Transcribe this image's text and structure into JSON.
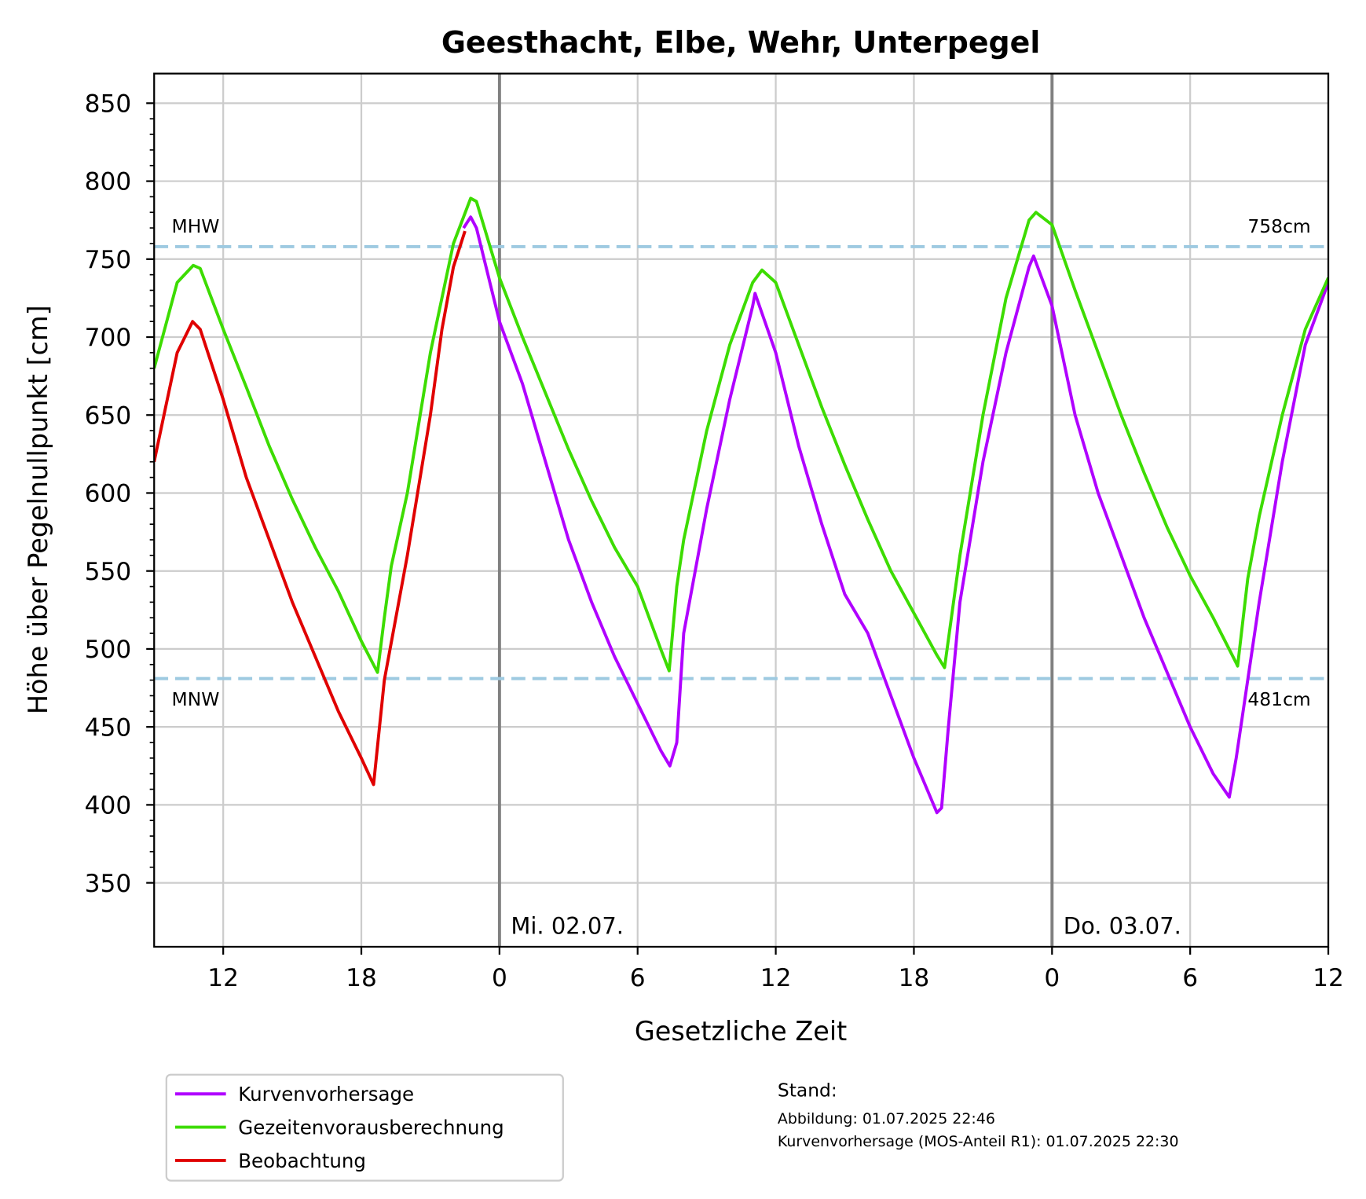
{
  "chart_data": {
    "type": "line",
    "title": "Geesthacht, Elbe, Wehr, Unterpegel",
    "xlabel": "Gesetzliche Zeit",
    "ylabel": "Höhe über Pegelnullpunkt [cm]",
    "xlim": [
      9,
      60
    ],
    "ylim": [
      309,
      869
    ],
    "xticks": [
      12,
      18,
      {
        "value": 24,
        "label": "0"
      },
      {
        "value": 30,
        "label": "6"
      },
      {
        "value": 36,
        "label": "12"
      },
      {
        "value": 42,
        "label": "18"
      },
      {
        "value": 48,
        "label": "0"
      },
      {
        "value": 54,
        "label": "6"
      },
      {
        "value": 60,
        "label": "12"
      }
    ],
    "yticks": [
      350,
      400,
      450,
      500,
      550,
      600,
      650,
      700,
      750,
      800,
      850
    ],
    "grid": true,
    "legend": "bottom left",
    "day_lines": [
      {
        "value": 24,
        "label": "Mi. 02.07."
      },
      {
        "value": 48,
        "label": "Do. 03.07."
      }
    ],
    "reference_lines": [
      {
        "name": "MHW",
        "value": 758,
        "label": "758cm"
      },
      {
        "name": "MNW",
        "value": 481,
        "label": "481cm"
      }
    ],
    "reference_color": "#9ecae1",
    "stand": {
      "heading": "Stand:",
      "lines": [
        "Abbildung: 01.07.2025 22:46",
        "Kurvenvorhersage (MOS-Anteil R1): 01.07.2025 22:30"
      ]
    },
    "series": [
      {
        "name": "Kurvenvorhersage",
        "color": "#b000ff",
        "x": [
          22.44,
          22.75,
          23,
          24,
          25,
          26,
          27,
          28,
          29,
          30,
          31,
          31.4,
          31.7,
          32,
          33,
          34,
          35,
          35.1,
          36,
          37,
          38,
          39,
          40,
          41,
          42,
          43,
          43.2,
          43.5,
          44,
          45,
          46,
          47,
          47.2,
          48,
          49,
          50,
          51,
          52,
          53,
          54,
          55,
          55.7,
          56,
          57,
          58,
          59,
          60
        ],
        "values": [
          770,
          777,
          770,
          710,
          670,
          620,
          570,
          530,
          495,
          465,
          435,
          425,
          440,
          510,
          590,
          660,
          720,
          728,
          690,
          630,
          580,
          535,
          510,
          470,
          430,
          395,
          398,
          450,
          530,
          620,
          690,
          745,
          752,
          720,
          650,
          600,
          560,
          520,
          485,
          450,
          420,
          405,
          430,
          530,
          620,
          695,
          735
        ]
      },
      {
        "name": "Gezeitenvorausberechnung",
        "color": "#3ddc00",
        "x": [
          9,
          10,
          10.7,
          11,
          12,
          13,
          14,
          15,
          16,
          17,
          18,
          18.7,
          19,
          19.3,
          20,
          21,
          22,
          22.75,
          23,
          24,
          25,
          26,
          27,
          28,
          29,
          30,
          31,
          31.37,
          31.7,
          32,
          33,
          34,
          35,
          35.4,
          36,
          37,
          38,
          39,
          40,
          41,
          42,
          43,
          43.33,
          44,
          45,
          46,
          47,
          47.3,
          48,
          49,
          50,
          51,
          52,
          53,
          54,
          55,
          56,
          56.06,
          56.5,
          57,
          58,
          59,
          60
        ],
        "values": [
          680,
          735,
          746,
          744,
          705,
          668,
          630,
          596,
          565,
          537,
          505,
          485,
          520,
          553,
          600,
          690,
          760,
          789,
          787,
          738,
          700,
          664,
          628,
          595,
          565,
          540,
          500,
          486,
          540,
          570,
          640,
          695,
          735,
          743,
          735,
          695,
          655,
          618,
          583,
          550,
          523,
          496,
          488,
          560,
          650,
          725,
          775,
          780,
          772,
          730,
          690,
          650,
          613,
          578,
          547,
          520,
          491,
          489,
          545,
          585,
          650,
          705,
          738
        ]
      },
      {
        "name": "Beobachtung",
        "color": "#e00000",
        "x": [
          9,
          9.5,
          10,
          10.67,
          11,
          12,
          13,
          14,
          15,
          16,
          17,
          18,
          18.53,
          19,
          20,
          21,
          21.5,
          22,
          22.5
        ],
        "values": [
          620,
          655,
          690,
          710,
          705,
          660,
          610,
          570,
          530,
          495,
          460,
          430,
          413,
          480,
          560,
          650,
          705,
          745,
          768
        ]
      }
    ]
  }
}
